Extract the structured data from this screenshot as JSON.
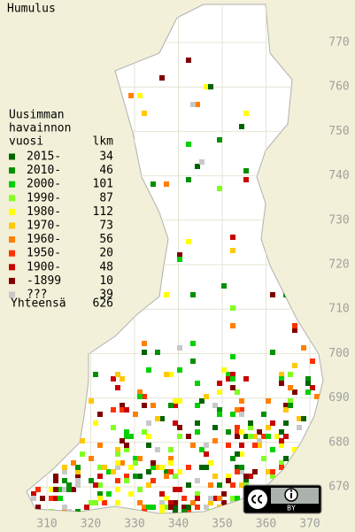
{
  "title": "Humulus",
  "legend": {
    "heading": [
      "Uusimman",
      "havainnon",
      "vuosi"
    ],
    "count_heading": "lkm",
    "items": [
      {
        "label": "2015-",
        "count": 34,
        "color": "#006400"
      },
      {
        "label": "2010-",
        "count": 46,
        "color": "#009000"
      },
      {
        "label": "2000-",
        "count": 101,
        "color": "#00d000"
      },
      {
        "label": "1990-",
        "count": 87,
        "color": "#80ff20"
      },
      {
        "label": "1980-",
        "count": 112,
        "color": "#ffff00"
      },
      {
        "label": "1970-",
        "count": 73,
        "color": "#ffc800"
      },
      {
        "label": "1960-",
        "count": 56,
        "color": "#ff8000"
      },
      {
        "label": "1950-",
        "count": 20,
        "color": "#ff3000"
      },
      {
        "label": "1900-",
        "count": 48,
        "color": "#c80000"
      },
      {
        "label": "-1899",
        "count": 10,
        "color": "#800000"
      },
      {
        "label": "???",
        "count": 39,
        "color": "#c8c8c8"
      }
    ],
    "total_label": "Yhteensä",
    "total": 626
  },
  "x_axis": {
    "ticks": [
      310,
      320,
      330,
      340,
      350,
      360,
      370
    ]
  },
  "y_axis": {
    "ticks": [
      670,
      680,
      690,
      700,
      710,
      720,
      730,
      740,
      750,
      760,
      770
    ]
  },
  "license": "BY"
}
